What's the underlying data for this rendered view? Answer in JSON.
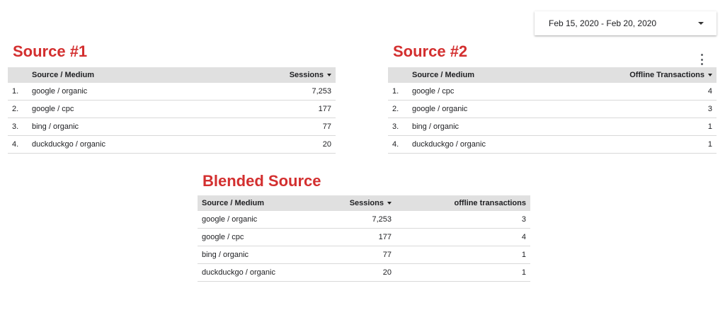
{
  "date_picker": {
    "label": "Feb 15, 2020 - Feb 20, 2020"
  },
  "source1": {
    "title": "Source #1",
    "headers": {
      "dimension": "Source / Medium",
      "metric": "Sessions"
    },
    "rows": [
      {
        "index": "1.",
        "source": "google / organic",
        "value": "7,253"
      },
      {
        "index": "2.",
        "source": "google / cpc",
        "value": "177"
      },
      {
        "index": "3.",
        "source": "bing / organic",
        "value": "77"
      },
      {
        "index": "4.",
        "source": "duckduckgo / organic",
        "value": "20"
      }
    ]
  },
  "source2": {
    "title": "Source #2",
    "headers": {
      "dimension": "Source / Medium",
      "metric": "Offline Transactions"
    },
    "rows": [
      {
        "index": "1.",
        "source": "google / cpc",
        "value": "4"
      },
      {
        "index": "2.",
        "source": "google / organic",
        "value": "3"
      },
      {
        "index": "3.",
        "source": "bing / organic",
        "value": "1"
      },
      {
        "index": "4.",
        "source": "duckduckgo / organic",
        "value": "1"
      }
    ]
  },
  "blended": {
    "title": "Blended Source",
    "headers": {
      "dimension": "Source / Medium",
      "metric1": "Sessions",
      "metric2": "offline transactions"
    },
    "rows": [
      {
        "source": "google / organic",
        "sessions": "7,253",
        "transactions": "3"
      },
      {
        "source": "google / cpc",
        "sessions": "177",
        "transactions": "4"
      },
      {
        "source": "bing / organic",
        "sessions": "77",
        "transactions": "1"
      },
      {
        "source": "duckduckgo / organic",
        "sessions": "20",
        "transactions": "1"
      }
    ]
  },
  "icons": {
    "dropdown": "caret-down-icon",
    "menu": "more-vert-icon",
    "sort": "sort-desc-icon"
  }
}
